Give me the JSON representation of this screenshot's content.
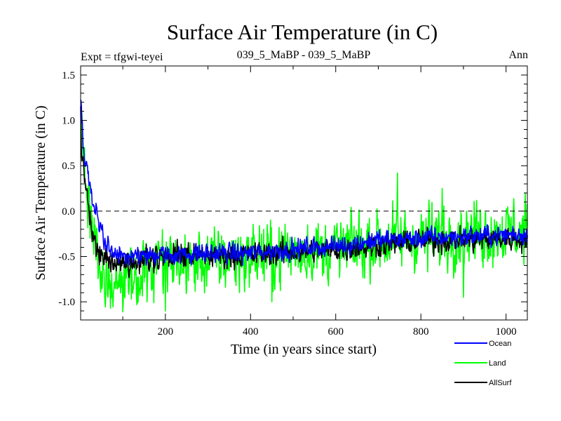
{
  "chart_data": {
    "type": "line",
    "title": "Surface Air Temperature (in C)",
    "subtitle_left": "Expt = tfgwi-teyei",
    "subtitle_center": "039_5_MaBP - 039_5_MaBP",
    "subtitle_right": "Ann",
    "xlabel": "Time (in years since start)",
    "ylabel": "Surface Air Temperature (in C)",
    "xlim": [
      1,
      1050
    ],
    "ylim": [
      -1.2,
      1.6
    ],
    "x_ticks": [
      200,
      400,
      600,
      800,
      1000
    ],
    "x_tick_labels": [
      "200",
      "400",
      "600",
      "800",
      "1000"
    ],
    "y_ticks": [
      -1.0,
      -0.5,
      0.0,
      0.5,
      1.0,
      1.5
    ],
    "y_tick_labels": [
      "-1.0",
      "-0.5",
      "0.0",
      "0.5",
      "1.0",
      "1.5"
    ],
    "reference_line": 0.0,
    "legend_position": "bottom-right",
    "series": [
      {
        "name": "Land",
        "color": "#00ff00",
        "noise": 0.16,
        "anchors": [
          [
            1,
            1.05
          ],
          [
            5,
            0.75
          ],
          [
            10,
            0.45
          ],
          [
            20,
            0.1
          ],
          [
            30,
            -0.3
          ],
          [
            45,
            -0.6
          ],
          [
            60,
            -0.75
          ],
          [
            80,
            -0.8
          ],
          [
            100,
            -0.8
          ],
          [
            140,
            -0.72
          ],
          [
            200,
            -0.6
          ],
          [
            300,
            -0.55
          ],
          [
            400,
            -0.5
          ],
          [
            500,
            -0.45
          ],
          [
            600,
            -0.42
          ],
          [
            700,
            -0.35
          ],
          [
            800,
            -0.3
          ],
          [
            900,
            -0.25
          ],
          [
            1050,
            -0.22
          ]
        ],
        "markers": [
          [
            200,
            -1.1
          ],
          [
            450,
            -1.0
          ],
          [
            745,
            0.42
          ],
          [
            850,
            0.25
          ],
          [
            900,
            -0.95
          ],
          [
            1045,
            0.2
          ]
        ]
      },
      {
        "name": "AllSurf",
        "color": "#000000",
        "noise": 0.06,
        "anchors": [
          [
            1,
            1.0
          ],
          [
            5,
            0.6
          ],
          [
            10,
            0.35
          ],
          [
            20,
            0.05
          ],
          [
            30,
            -0.25
          ],
          [
            45,
            -0.45
          ],
          [
            60,
            -0.55
          ],
          [
            80,
            -0.6
          ],
          [
            100,
            -0.6
          ],
          [
            200,
            -0.5
          ],
          [
            400,
            -0.48
          ],
          [
            600,
            -0.42
          ],
          [
            800,
            -0.33
          ],
          [
            1050,
            -0.3
          ]
        ],
        "markers": []
      },
      {
        "name": "Ocean",
        "color": "#0000ff",
        "noise": 0.05,
        "anchors": [
          [
            1,
            1.2
          ],
          [
            5,
            0.9
          ],
          [
            10,
            0.55
          ],
          [
            20,
            0.35
          ],
          [
            30,
            0.1
          ],
          [
            45,
            -0.15
          ],
          [
            60,
            -0.35
          ],
          [
            80,
            -0.45
          ],
          [
            100,
            -0.5
          ],
          [
            140,
            -0.5
          ],
          [
            200,
            -0.48
          ],
          [
            300,
            -0.47
          ],
          [
            400,
            -0.46
          ],
          [
            500,
            -0.42
          ],
          [
            600,
            -0.38
          ],
          [
            700,
            -0.32
          ],
          [
            800,
            -0.3
          ],
          [
            900,
            -0.28
          ],
          [
            1050,
            -0.25
          ]
        ],
        "markers": []
      }
    ],
    "legend_order": [
      "Ocean",
      "Land",
      "AllSurf"
    ]
  }
}
